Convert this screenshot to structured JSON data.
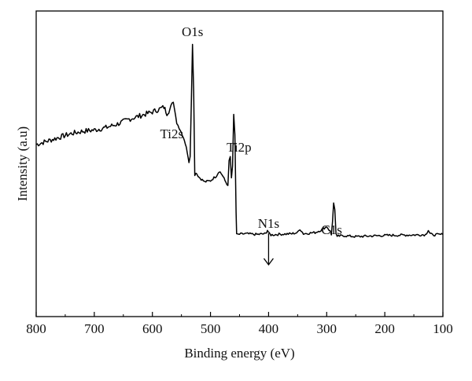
{
  "chart_data": {
    "type": "line",
    "title": "",
    "xlabel": "Binding energy (eV)",
    "ylabel": "Intensity (a.u)",
    "xlim": [
      800,
      100
    ],
    "x_reversed": true,
    "ylim": [
      0,
      100
    ],
    "grid": false,
    "legend": "none",
    "x_ticks": [
      "800",
      "700",
      "600",
      "500",
      "400",
      "300",
      "200",
      "100"
    ],
    "x_tick_values": [
      800,
      700,
      600,
      500,
      400,
      300,
      200,
      100
    ],
    "line_color": "#000000",
    "series": [
      {
        "x": [
          800,
          780,
          760,
          740,
          720,
          700,
          680,
          660,
          640,
          620,
          600,
          590,
          580,
          575,
          570,
          564,
          558,
          550,
          545,
          540,
          537,
          535,
          533,
          531,
          529,
          527,
          525,
          520,
          510,
          500,
          490,
          485,
          480,
          475,
          470,
          468,
          466,
          464,
          462,
          460,
          458,
          456,
          455,
          453,
          450,
          440,
          420,
          405,
          402,
          399,
          396,
          380,
          360,
          350,
          346,
          340,
          320,
          310,
          300,
          294,
          292,
          290,
          288,
          286,
          284,
          282,
          280,
          270,
          250,
          200,
          150,
          130,
          125,
          122,
          118,
          110,
          100
        ],
        "y": [
          58,
          59.5,
          61,
          62.5,
          63.5,
          64,
          65,
          66.5,
          68.5,
          70,
          71.5,
          72.5,
          73.5,
          71,
          72.5,
          75.5,
          67,
          63,
          60,
          55,
          51,
          53,
          75,
          99.5,
          80,
          45,
          46.5,
          44.5,
          42.5,
          43,
          45,
          47,
          45.5,
          43,
          41,
          51,
          53,
          44,
          49,
          70.5,
          62,
          30,
          21,
          20.5,
          20.8,
          21,
          20.7,
          21,
          22.5,
          21,
          20.5,
          20.8,
          21,
          21.5,
          23,
          21,
          21.5,
          22.5,
          24,
          22,
          20.5,
          26,
          34,
          31,
          21,
          19.5,
          20,
          20.2,
          19.8,
          20.3,
          20.5,
          20.6,
          22.5,
          21,
          20.5,
          20.6,
          20.7
        ]
      }
    ],
    "annotations": [
      {
        "text": "O1s",
        "x": 531
      },
      {
        "text": "Ti2s",
        "x": 564
      },
      {
        "text": "Ti2p",
        "x": 459
      },
      {
        "text": "N1s",
        "x": 400,
        "arrow": true
      },
      {
        "text": "C1s",
        "x": 286
      }
    ]
  }
}
